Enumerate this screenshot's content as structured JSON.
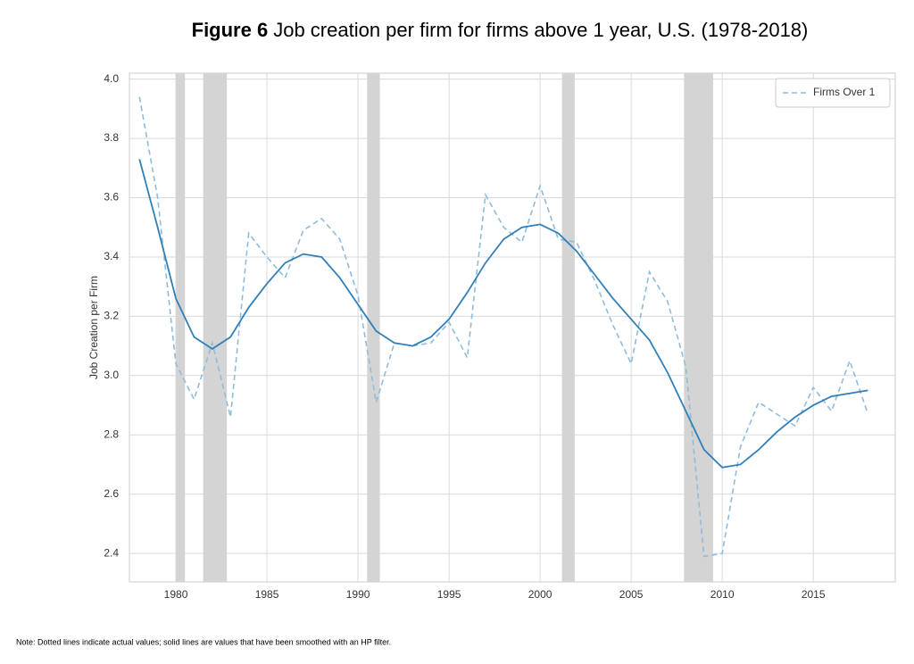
{
  "chart_data": {
    "type": "line",
    "figure_label": "Figure 6",
    "title": "Job creation per firm for firms above 1 year, U.S. (1978-2018)",
    "y_label": "Job Creation per Firm",
    "note": "Note: Dotted lines indicate actual values; solid lines are values that have been smoothed with an HP filter.",
    "x": [
      1978,
      1979,
      1980,
      1981,
      1982,
      1983,
      1984,
      1985,
      1986,
      1987,
      1988,
      1989,
      1990,
      1991,
      1992,
      1993,
      1994,
      1995,
      1996,
      1997,
      1998,
      1999,
      2000,
      2001,
      2002,
      2003,
      2004,
      2005,
      2006,
      2007,
      2008,
      2009,
      2010,
      2011,
      2012,
      2013,
      2014,
      2015,
      2016,
      2017,
      2018
    ],
    "series": [
      {
        "name": "Firms Over 1",
        "color": "#8fbcdb",
        "dashed": true,
        "values": [
          3.94,
          3.6,
          3.04,
          2.92,
          3.11,
          2.86,
          3.48,
          3.4,
          3.33,
          3.49,
          3.53,
          3.46,
          3.27,
          2.91,
          3.11,
          3.1,
          3.11,
          3.18,
          3.06,
          3.61,
          3.5,
          3.45,
          3.64,
          3.46,
          3.45,
          3.32,
          3.17,
          3.04,
          3.35,
          3.25,
          3.03,
          2.39,
          2.4,
          2.76,
          2.91,
          2.87,
          2.83,
          2.96,
          2.88,
          3.05,
          2.87
        ]
      },
      {
        "color": "#2f7fb8",
        "dashed": false,
        "values": [
          3.73,
          3.5,
          3.26,
          3.13,
          3.09,
          3.13,
          3.23,
          3.31,
          3.38,
          3.41,
          3.4,
          3.33,
          3.24,
          3.15,
          3.11,
          3.1,
          3.13,
          3.19,
          3.28,
          3.38,
          3.46,
          3.5,
          3.51,
          3.48,
          3.42,
          3.34,
          3.26,
          3.19,
          3.12,
          3.01,
          2.88,
          2.75,
          2.69,
          2.7,
          2.75,
          2.81,
          2.86,
          2.9,
          2.93,
          2.94,
          2.95
        ]
      }
    ],
    "recessions": [
      [
        1980.0,
        1980.5
      ],
      [
        1981.5,
        1982.8
      ],
      [
        1990.5,
        1991.2
      ],
      [
        2001.2,
        2001.9
      ],
      [
        2007.9,
        2009.5
      ]
    ],
    "recession_color": "#d4d4d4",
    "xlim": [
      1977.45,
      2019.5
    ],
    "xticks": [
      1980,
      1985,
      1990,
      1995,
      2000,
      2005,
      2010,
      2015
    ],
    "ylim": [
      2.304,
      4.02
    ],
    "yticks": [
      {
        "value": 2.4,
        "label": "2.4"
      },
      {
        "value": 2.6,
        "label": "2.6"
      },
      {
        "value": 2.8,
        "label": "2.8"
      },
      {
        "value": 3.0,
        "label": "3.0"
      },
      {
        "value": 3.2,
        "label": "3.2"
      },
      {
        "value": 3.4,
        "label": "3.4"
      },
      {
        "value": 3.6,
        "label": "3.6"
      },
      {
        "value": 3.8,
        "label": "3.8"
      },
      {
        "value": 4.0,
        "label": "4.0"
      }
    ],
    "grid": true,
    "legend": "upper-right"
  }
}
